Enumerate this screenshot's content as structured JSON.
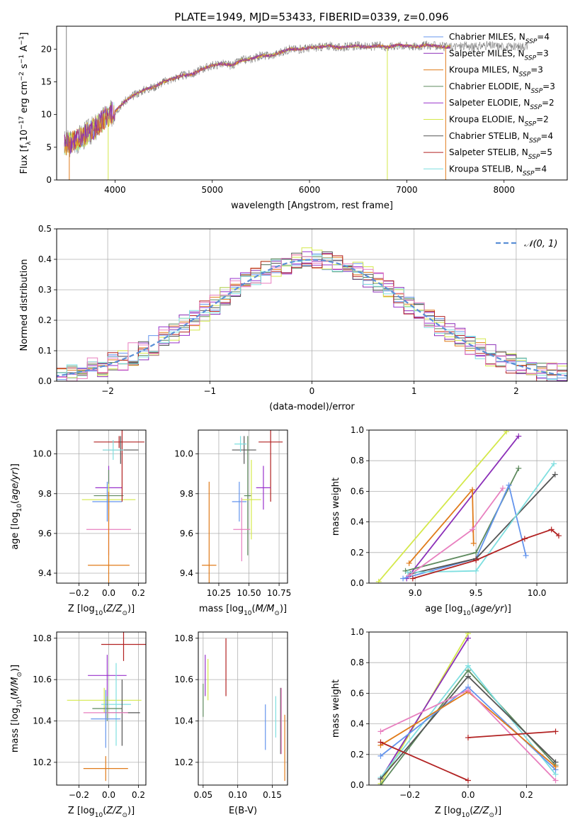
{
  "figure": {
    "title": "PLATE=1949, MJD=53433, FIBERID=0339, z=0.096"
  },
  "colors": {
    "Chabrier MILES": "#6495ed",
    "Salpeter MILES": "#8b2fb8",
    "Kroupa MILES": "#e07b1a",
    "Chabrier ELODIE": "#5e8a5e",
    "Salpeter ELODIE": "#9932cc",
    "Kroupa ELODIE": "#d4e84a",
    "Chabrier STELIB": "#555555",
    "Salpeter STELIB": "#b22222",
    "Kroupa STELIB": "#7fdfe0",
    "Salpeter ELODIE alt": "#e87fbf",
    "data": "#808080",
    "normal": "#5b8fd6",
    "grid": "#b0b0b0"
  },
  "chart_data": [
    {
      "id": "spectrum",
      "type": "line",
      "title": "PLATE=1949, MJD=53433, FIBERID=0339, z=0.096",
      "xlabel": "wavelength [Angstrom, rest frame]",
      "ylabel": "Flux [f",
      "ylabel_full": "Flux [fλ10⁻¹⁷ erg cm⁻² s⁻¹ A⁻¹]",
      "xlim": [
        3400,
        8650
      ],
      "ylim": [
        0,
        23.5
      ],
      "xticks": [
        4000,
        5000,
        6000,
        7000,
        8000
      ],
      "yticks": [
        0,
        5,
        10,
        15,
        20
      ],
      "grid": false,
      "legend_placement": "top-right",
      "legend": [
        {
          "label": "Chabrier MILES, N",
          "sub": "SSP",
          "tail": "=4",
          "color": "#6495ed"
        },
        {
          "label": "Salpeter MILES, N",
          "sub": "SSP",
          "tail": "=3",
          "color": "#8b2fb8"
        },
        {
          "label": "Kroupa MILES, N",
          "sub": "SSP",
          "tail": "=3",
          "color": "#e07b1a"
        },
        {
          "label": "Chabrier ELODIE, N",
          "sub": "SSP",
          "tail": "=3",
          "color": "#5e8a5e"
        },
        {
          "label": "Salpeter ELODIE, N",
          "sub": "SSP",
          "tail": "=2",
          "color": "#9932cc"
        },
        {
          "label": "Kroupa ELODIE, N",
          "sub": "SSP",
          "tail": "=2",
          "color": "#d4e84a"
        },
        {
          "label": "Chabrier STELIB, N",
          "sub": "SSP",
          "tail": "=4",
          "color": "#555555"
        },
        {
          "label": "Salpeter STELIB, N",
          "sub": "SSP",
          "tail": "=5",
          "color": "#b22222"
        },
        {
          "label": "Kroupa STELIB, N",
          "sub": "SSP",
          "tail": "=4",
          "color": "#7fdfe0"
        }
      ],
      "series_envelope": {
        "x": [
          3500,
          3600,
          3700,
          3800,
          3900,
          4000,
          4100,
          4200,
          4300,
          4400,
          4500,
          4600,
          4700,
          4800,
          4900,
          5000,
          5100,
          5200,
          5300,
          5400,
          5500,
          5600,
          5700,
          5800,
          5900,
          6000,
          6100,
          6200,
          6300,
          6400,
          6500,
          6600,
          6700,
          6800,
          6900,
          7000,
          7100,
          7200,
          7300,
          7400,
          7500,
          7600,
          7700,
          7800,
          7900,
          8000,
          8100,
          8200
        ],
        "y": [
          5.5,
          6.0,
          7.0,
          8.0,
          9.5,
          10.5,
          12.0,
          13.0,
          13.8,
          14.2,
          15.0,
          15.5,
          16.0,
          16.2,
          17.0,
          17.5,
          17.8,
          17.5,
          18.3,
          18.5,
          19.0,
          19.0,
          19.5,
          20.0,
          20.0,
          20.2,
          20.3,
          20.5,
          20.2,
          20.4,
          20.5,
          20.3,
          20.5,
          20.3,
          20.6,
          20.5,
          20.4,
          20.6,
          20.5,
          20.3,
          20.4,
          20.5,
          20.3,
          20.6,
          20.5,
          20.4,
          20.3,
          20.5
        ]
      },
      "spikes": [
        {
          "x": 3500,
          "y": 23.5,
          "color": "#808080"
        },
        {
          "x": 3930,
          "y": 0.0,
          "color": "#d4e84a"
        },
        {
          "x": 6800,
          "y": 0.0,
          "color": "#d4e84a"
        },
        {
          "x": 7400,
          "y": 0.0,
          "color": "#e07b1a"
        },
        {
          "x": 3530,
          "y": 0.0,
          "color": "#e07b1a"
        }
      ]
    },
    {
      "id": "residuals",
      "type": "bar",
      "xlabel": "(data-model)/error",
      "ylabel": "Normed distribution",
      "xlim": [
        -2.5,
        2.5
      ],
      "ylim": [
        0,
        0.5
      ],
      "xticks": [
        -2,
        -1,
        0,
        1,
        2
      ],
      "yticks": [
        0.0,
        0.1,
        0.2,
        0.3,
        0.4,
        0.5
      ],
      "grid": true,
      "legend_placement": "top-right",
      "legend": [
        {
          "label": "𝒩(0, 1)",
          "color": "#5b8fd6",
          "style": "dashed"
        }
      ],
      "bin_width": 0.1,
      "series": [
        {
          "name": "Chabrier MILES",
          "color": "#6495ed",
          "jitter": 0.03,
          "seed": 1
        },
        {
          "name": "Salpeter MILES",
          "color": "#8b2fb8",
          "jitter": 0.035,
          "seed": 2
        },
        {
          "name": "Kroupa MILES",
          "color": "#e07b1a",
          "jitter": 0.03,
          "seed": 3
        },
        {
          "name": "Chabrier ELODIE",
          "color": "#5e8a5e",
          "jitter": 0.03,
          "seed": 4
        },
        {
          "name": "Salpeter ELODIE",
          "color": "#9932cc",
          "jitter": 0.04,
          "seed": 5
        },
        {
          "name": "Kroupa ELODIE",
          "color": "#d4e84a",
          "jitter": 0.04,
          "seed": 6
        },
        {
          "name": "Chabrier STELIB",
          "color": "#555555",
          "jitter": 0.03,
          "seed": 7
        },
        {
          "name": "Salpeter STELIB",
          "color": "#b22222",
          "jitter": 0.035,
          "seed": 8
        },
        {
          "name": "Kroupa STELIB",
          "color": "#7fdfe0",
          "jitter": 0.03,
          "seed": 9
        },
        {
          "name": "Pink",
          "color": "#e87fbf",
          "jitter": 0.04,
          "seed": 10
        }
      ]
    },
    {
      "id": "age_vs_Z",
      "type": "scatter",
      "xlabel": "Z [log",
      "xlabel_full": "Z [log10(Z/Z⊙)]",
      "ylabel_full": "age  [log10(age/yr)]",
      "xlim": [
        -0.35,
        0.25
      ],
      "ylim": [
        9.35,
        10.12
      ],
      "xticks": [
        -0.2,
        0.0,
        0.2
      ],
      "yticks": [
        9.4,
        9.6,
        9.8,
        10.0
      ],
      "grid": true,
      "points": [
        {
          "x": 0.07,
          "y": 10.06,
          "xerr": 0.17,
          "yerr": 0.03,
          "color": "#b22222"
        },
        {
          "x": 0.08,
          "y": 10.02,
          "xerr": 0.12,
          "yerr": 0.07,
          "color": "#555555"
        },
        {
          "x": 0.0,
          "y": 9.83,
          "xerr": 0.09,
          "yerr": 0.11,
          "color": "#9932cc"
        },
        {
          "x": 0.0,
          "y": 9.79,
          "xerr": 0.1,
          "yerr": 0.13,
          "color": "#5e8a5e"
        },
        {
          "x": 0.0,
          "y": 9.77,
          "xerr": 0.18,
          "yerr": 0.08,
          "color": "#d4e84a"
        },
        {
          "x": -0.01,
          "y": 9.76,
          "xerr": 0.1,
          "yerr": 0.1,
          "color": "#6495ed"
        },
        {
          "x": 0.0,
          "y": 9.62,
          "xerr": 0.15,
          "yerr": 0.13,
          "color": "#e87fbf"
        },
        {
          "x": 0.0,
          "y": 9.44,
          "xerr": 0.14,
          "yerr": 0.37,
          "color": "#e07b1a"
        },
        {
          "x": 0.09,
          "y": 9.96,
          "xerr": 0.0,
          "yerr": 0.2,
          "color": "#b22222"
        },
        {
          "x": 0.03,
          "y": 10.02,
          "xerr": 0.07,
          "yerr": 0.05,
          "color": "#7fdfe0"
        }
      ]
    },
    {
      "id": "age_vs_mass",
      "type": "scatter",
      "xlabel_full": "mass [log10(M/M⊙)]",
      "xlim": [
        10.08,
        10.82
      ],
      "ylim": [
        9.35,
        10.12
      ],
      "xticks": [
        10.25,
        10.5,
        10.75
      ],
      "yticks": [
        9.4,
        9.6,
        9.8,
        10.0
      ],
      "grid": true,
      "points": [
        {
          "x": 10.68,
          "y": 10.06,
          "xerr": 0.1,
          "yerr": 0.3,
          "color": "#b22222"
        },
        {
          "x": 10.46,
          "y": 10.02,
          "xerr": 0.1,
          "yerr": 0.07,
          "color": "#555555"
        },
        {
          "x": 10.62,
          "y": 9.83,
          "xerr": 0.06,
          "yerr": 0.11,
          "color": "#9932cc"
        },
        {
          "x": 10.49,
          "y": 9.79,
          "xerr": 0.03,
          "yerr": 0.3,
          "color": "#5e8a5e"
        },
        {
          "x": 10.52,
          "y": 9.77,
          "xerr": 0.08,
          "yerr": 0.2,
          "color": "#d4e84a"
        },
        {
          "x": 10.42,
          "y": 9.76,
          "xerr": 0.06,
          "yerr": 0.1,
          "color": "#6495ed"
        },
        {
          "x": 10.44,
          "y": 9.62,
          "xerr": 0.07,
          "yerr": 0.16,
          "color": "#e87fbf"
        },
        {
          "x": 10.17,
          "y": 9.44,
          "xerr": 0.06,
          "yerr": 0.42,
          "color": "#e07b1a"
        },
        {
          "x": 10.43,
          "y": 10.05,
          "xerr": 0.05,
          "yerr": 0.04,
          "color": "#7fdfe0"
        }
      ]
    },
    {
      "id": "massweight_vs_age",
      "type": "line",
      "xlabel_full": "age  [log10(age/yr)]",
      "ylabel": "mass weight",
      "xlim": [
        8.62,
        10.25
      ],
      "ylim": [
        0,
        1.0
      ],
      "xticks": [
        9.0,
        9.5,
        10.0
      ],
      "yticks": [
        0.0,
        0.2,
        0.4,
        0.6,
        0.8,
        1.0
      ],
      "grid": true,
      "series": [
        {
          "name": "Kroupa ELODIE",
          "color": "#d4e84a",
          "x": [
            8.7,
            9.75
          ],
          "y": [
            0.01,
            0.99
          ]
        },
        {
          "name": "Salpeter ELODIE",
          "color": "#8b2fb8",
          "x": [
            8.93,
            9.85
          ],
          "y": [
            0.03,
            0.96
          ]
        },
        {
          "name": "Kroupa MILES",
          "color": "#e07b1a",
          "x": [
            8.95,
            9.47,
            9.48
          ],
          "y": [
            0.13,
            0.61,
            0.26
          ]
        },
        {
          "name": "Chabrier ELODIE",
          "color": "#5e8a5e",
          "x": [
            8.92,
            9.5,
            9.85
          ],
          "y": [
            0.08,
            0.2,
            0.75
          ]
        },
        {
          "name": "Chabrier MILES",
          "color": "#6495ed",
          "x": [
            8.9,
            9.5,
            9.77,
            9.91
          ],
          "y": [
            0.03,
            0.16,
            0.64,
            0.18
          ]
        },
        {
          "name": "Chabrier STELIB",
          "color": "#555555",
          "x": [
            8.96,
            9.5,
            10.15
          ],
          "y": [
            0.06,
            0.16,
            0.71
          ]
        },
        {
          "name": "Kroupa STELIB",
          "color": "#7fdfe0",
          "x": [
            8.94,
            9.5,
            10.14
          ],
          "y": [
            0.07,
            0.08,
            0.78
          ]
        },
        {
          "name": "Salpeter STELIB",
          "color": "#b22222",
          "x": [
            8.98,
            9.5,
            9.9,
            10.12,
            10.18
          ],
          "y": [
            0.03,
            0.15,
            0.29,
            0.35,
            0.31
          ]
        },
        {
          "name": "Pink",
          "color": "#e87fbf",
          "x": [
            8.95,
            9.47,
            9.72
          ],
          "y": [
            0.05,
            0.35,
            0.62
          ]
        }
      ]
    },
    {
      "id": "mass_vs_Z",
      "type": "scatter",
      "xlabel_full": "Z [log10(Z/Z⊙)]",
      "ylabel_full": "mass [log10(M/M⊙)]",
      "xlim": [
        -0.35,
        0.25
      ],
      "ylim": [
        10.09,
        10.83
      ],
      "xticks": [
        -0.2,
        0.0,
        0.2
      ],
      "yticks": [
        10.2,
        10.4,
        10.6,
        10.8
      ],
      "grid": true,
      "points": [
        {
          "x": 0.1,
          "y": 10.77,
          "xerr": 0.15,
          "yerr": 0.08,
          "color": "#b22222"
        },
        {
          "x": -0.01,
          "y": 10.62,
          "xerr": 0.13,
          "yerr": 0.1,
          "color": "#9932cc"
        },
        {
          "x": -0.03,
          "y": 10.5,
          "xerr": 0.25,
          "yerr": 0.06,
          "color": "#d4e84a"
        },
        {
          "x": 0.05,
          "y": 10.48,
          "xerr": 0.1,
          "yerr": 0.2,
          "color": "#7fdfe0"
        },
        {
          "x": -0.01,
          "y": 10.46,
          "xerr": 0.1,
          "yerr": 0.06,
          "color": "#5e8a5e"
        },
        {
          "x": 0.09,
          "y": 10.44,
          "xerr": 0.12,
          "yerr": 0.16,
          "color": "#555555"
        },
        {
          "x": -0.02,
          "y": 10.44,
          "xerr": 0.15,
          "yerr": 0.03,
          "color": "#e87fbf"
        },
        {
          "x": -0.02,
          "y": 10.41,
          "xerr": 0.1,
          "yerr": 0.14,
          "color": "#6495ed"
        },
        {
          "x": -0.02,
          "y": 10.17,
          "xerr": 0.15,
          "yerr": 0.06,
          "color": "#e07b1a"
        }
      ]
    },
    {
      "id": "mass_vs_ebv",
      "type": "scatter",
      "xlabel": "E(B-V)",
      "xlim": [
        0.043,
        0.172
      ],
      "ylim": [
        10.09,
        10.83
      ],
      "xticks": [
        0.05,
        0.1,
        0.15
      ],
      "xtick_labels": [
        "0.05",
        "0.10",
        "0.15"
      ],
      "yticks": [
        10.2,
        10.4,
        10.6,
        10.8
      ],
      "grid": true,
      "points": [
        {
          "x": 0.05,
          "y": 10.5,
          "yerr": 0.08,
          "color": "#5e8a5e"
        },
        {
          "x": 0.053,
          "y": 10.62,
          "yerr": 0.1,
          "color": "#9932cc"
        },
        {
          "x": 0.057,
          "y": 10.6,
          "yerr": 0.1,
          "color": "#d4e84a"
        },
        {
          "x": 0.083,
          "y": 10.66,
          "yerr": 0.14,
          "color": "#b22222"
        },
        {
          "x": 0.14,
          "y": 10.37,
          "yerr": 0.11,
          "color": "#6495ed"
        },
        {
          "x": 0.155,
          "y": 10.42,
          "yerr": 0.1,
          "color": "#7fdfe0"
        },
        {
          "x": 0.162,
          "y": 10.4,
          "yerr": 0.16,
          "color": "#555555"
        },
        {
          "x": 0.163,
          "y": 10.4,
          "yerr": 0.16,
          "color": "#e87fbf"
        },
        {
          "x": 0.168,
          "y": 10.27,
          "yerr": 0.16,
          "color": "#e07b1a"
        }
      ]
    },
    {
      "id": "massweight_vs_Z",
      "type": "line",
      "xlabel_full": "Z [log10(Z/Z⊙)]",
      "ylabel": "mass weight",
      "xlim": [
        -0.34,
        0.34
      ],
      "ylim": [
        0,
        1.0
      ],
      "xticks": [
        -0.2,
        0.0,
        0.2
      ],
      "yticks": [
        0.0,
        0.2,
        0.4,
        0.6,
        0.8,
        1.0
      ],
      "grid": true,
      "series": [
        {
          "name": "Kroupa ELODIE",
          "color": "#d4e84a",
          "x": [
            -0.3,
            0.0
          ],
          "y": [
            0.01,
            0.99
          ]
        },
        {
          "name": "Salpeter ELODIE",
          "color": "#8b2fb8",
          "x": [
            -0.3,
            0.0
          ],
          "y": [
            0.04,
            0.96
          ]
        },
        {
          "name": "Chabrier ELODIE",
          "color": "#5e8a5e",
          "x": [
            -0.3,
            0.0,
            0.3
          ],
          "y": [
            0.0,
            0.75,
            0.13
          ]
        },
        {
          "name": "Kroupa STELIB",
          "color": "#7fdfe0",
          "x": [
            -0.3,
            0.0,
            0.3
          ],
          "y": [
            0.05,
            0.78,
            0.07
          ]
        },
        {
          "name": "Chabrier STELIB",
          "color": "#555555",
          "x": [
            -0.3,
            0.0,
            0.3
          ],
          "y": [
            0.04,
            0.71,
            0.15
          ]
        },
        {
          "name": "Chabrier MILES",
          "color": "#6495ed",
          "x": [
            -0.3,
            0.0,
            0.3
          ],
          "y": [
            0.19,
            0.64,
            0.1
          ]
        },
        {
          "name": "Kroupa MILES",
          "color": "#e07b1a",
          "x": [
            -0.3,
            0.0,
            0.3
          ],
          "y": [
            0.26,
            0.61,
            0.12
          ]
        },
        {
          "name": "Pink",
          "color": "#e87fbf",
          "x": [
            -0.3,
            0.0,
            0.3
          ],
          "y": [
            0.35,
            0.62,
            0.03
          ]
        },
        {
          "name": "Salpeter STELIB",
          "color": "#b22222",
          "x": [
            -0.3,
            0.0
          ],
          "y": [
            0.28,
            0.03
          ]
        },
        {
          "name": "Salpeter STELIB b",
          "color": "#b22222",
          "x": [
            0.0,
            0.3
          ],
          "y": [
            0.31,
            0.35
          ]
        }
      ]
    }
  ]
}
